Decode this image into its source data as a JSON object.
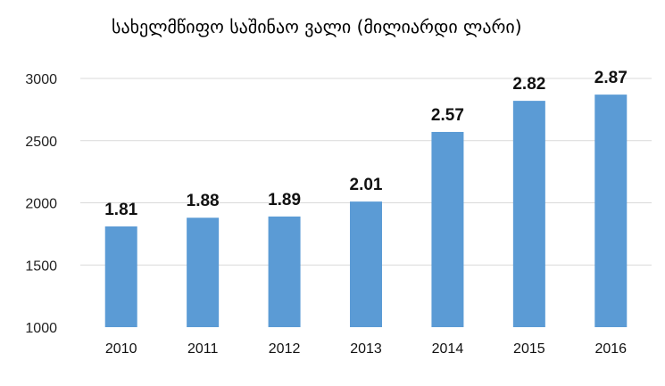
{
  "chart_data": {
    "type": "bar",
    "title": "სახელმწიფო საშინაო ვალი (მილიარდი ლარი)",
    "categories": [
      "2010",
      "2011",
      "2012",
      "2013",
      "2014",
      "2015",
      "2016"
    ],
    "series": [
      {
        "name": "სახელმწიფო საშინაო ვალი",
        "values": [
          1810,
          1880,
          1890,
          2010,
          2570,
          2820,
          2870
        ]
      }
    ],
    "data_labels": [
      "1.81",
      "1.88",
      "1.89",
      "2.01",
      "2.57",
      "2.82",
      "2.87"
    ],
    "ylim": [
      1000,
      3000
    ],
    "yticks": [
      "1000",
      "1500",
      "2000",
      "2500",
      "3000"
    ],
    "ytick_values": [
      1000,
      1500,
      2000,
      2500,
      3000
    ],
    "xlabel": "",
    "ylabel": "",
    "grid": true,
    "bar_color": "#5b9bd5",
    "grid_color": "#d9d9d9"
  }
}
